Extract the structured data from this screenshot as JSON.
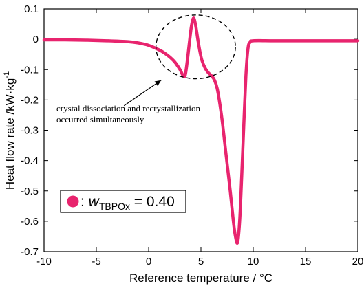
{
  "chart_data": {
    "type": "line",
    "xlabel": "Reference temperature / °C",
    "ylabel_main": "Heat flow rate /kW·kg",
    "ylabel_sup": "-1",
    "xlim": [
      -10,
      20
    ],
    "ylim": [
      -0.7,
      0.1
    ],
    "xticks": [
      -10,
      -5,
      0,
      5,
      10,
      15,
      20
    ],
    "xtick_labels": [
      "-10",
      "-5",
      "0",
      "5",
      "10",
      "15",
      "20"
    ],
    "yticks": [
      0.1,
      0,
      -0.1,
      -0.2,
      -0.3,
      -0.4,
      -0.5,
      -0.6,
      -0.7
    ],
    "ytick_labels": [
      "0.1",
      "0",
      "-0.1",
      "-0.2",
      "-0.3",
      "-0.4",
      "-0.5",
      "-0.6",
      "-0.7"
    ],
    "grid": false,
    "series": [
      {
        "color": "#e8246e",
        "x": [
          -10,
          -8,
          -6,
          -4,
          -2,
          -1,
          0,
          1,
          1.5,
          2,
          2.5,
          3,
          3.3,
          3.5,
          3.7,
          3.9,
          4.1,
          4.3,
          4.5,
          4.7,
          4.9,
          5.1,
          5.4,
          5.7,
          6.0,
          6.3,
          6.6,
          7.0,
          7.4,
          7.8,
          8.1,
          8.3,
          8.5,
          8.7,
          8.9,
          9.1,
          9.3,
          9.5,
          9.7,
          10,
          12,
          15,
          20
        ],
        "y": [
          -0.002,
          -0.002,
          -0.003,
          -0.005,
          -0.008,
          -0.012,
          -0.02,
          -0.035,
          -0.045,
          -0.058,
          -0.075,
          -0.1,
          -0.12,
          -0.118,
          -0.07,
          -0.01,
          0.045,
          0.07,
          0.045,
          0.0,
          -0.04,
          -0.07,
          -0.095,
          -0.11,
          -0.12,
          -0.135,
          -0.17,
          -0.26,
          -0.38,
          -0.5,
          -0.6,
          -0.65,
          -0.67,
          -0.6,
          -0.45,
          -0.28,
          -0.12,
          -0.03,
          -0.01,
          -0.005,
          -0.005,
          -0.005,
          -0.005
        ]
      }
    ],
    "annotation": {
      "line1": "crystal dissociation and recrystallization",
      "line2": "occurred simultaneously",
      "ellipse_center": [
        4.5,
        -0.025
      ],
      "ellipse_rx": 3.8,
      "ellipse_ry": 0.105,
      "arrow_tip": [
        1.2,
        -0.135
      ]
    },
    "legend": {
      "position": "bottom-left",
      "marker_color": "#e8246e",
      "prefix": ": ",
      "var": "w",
      "sub": "TBPOx",
      "value_text": " = 0.40"
    }
  }
}
